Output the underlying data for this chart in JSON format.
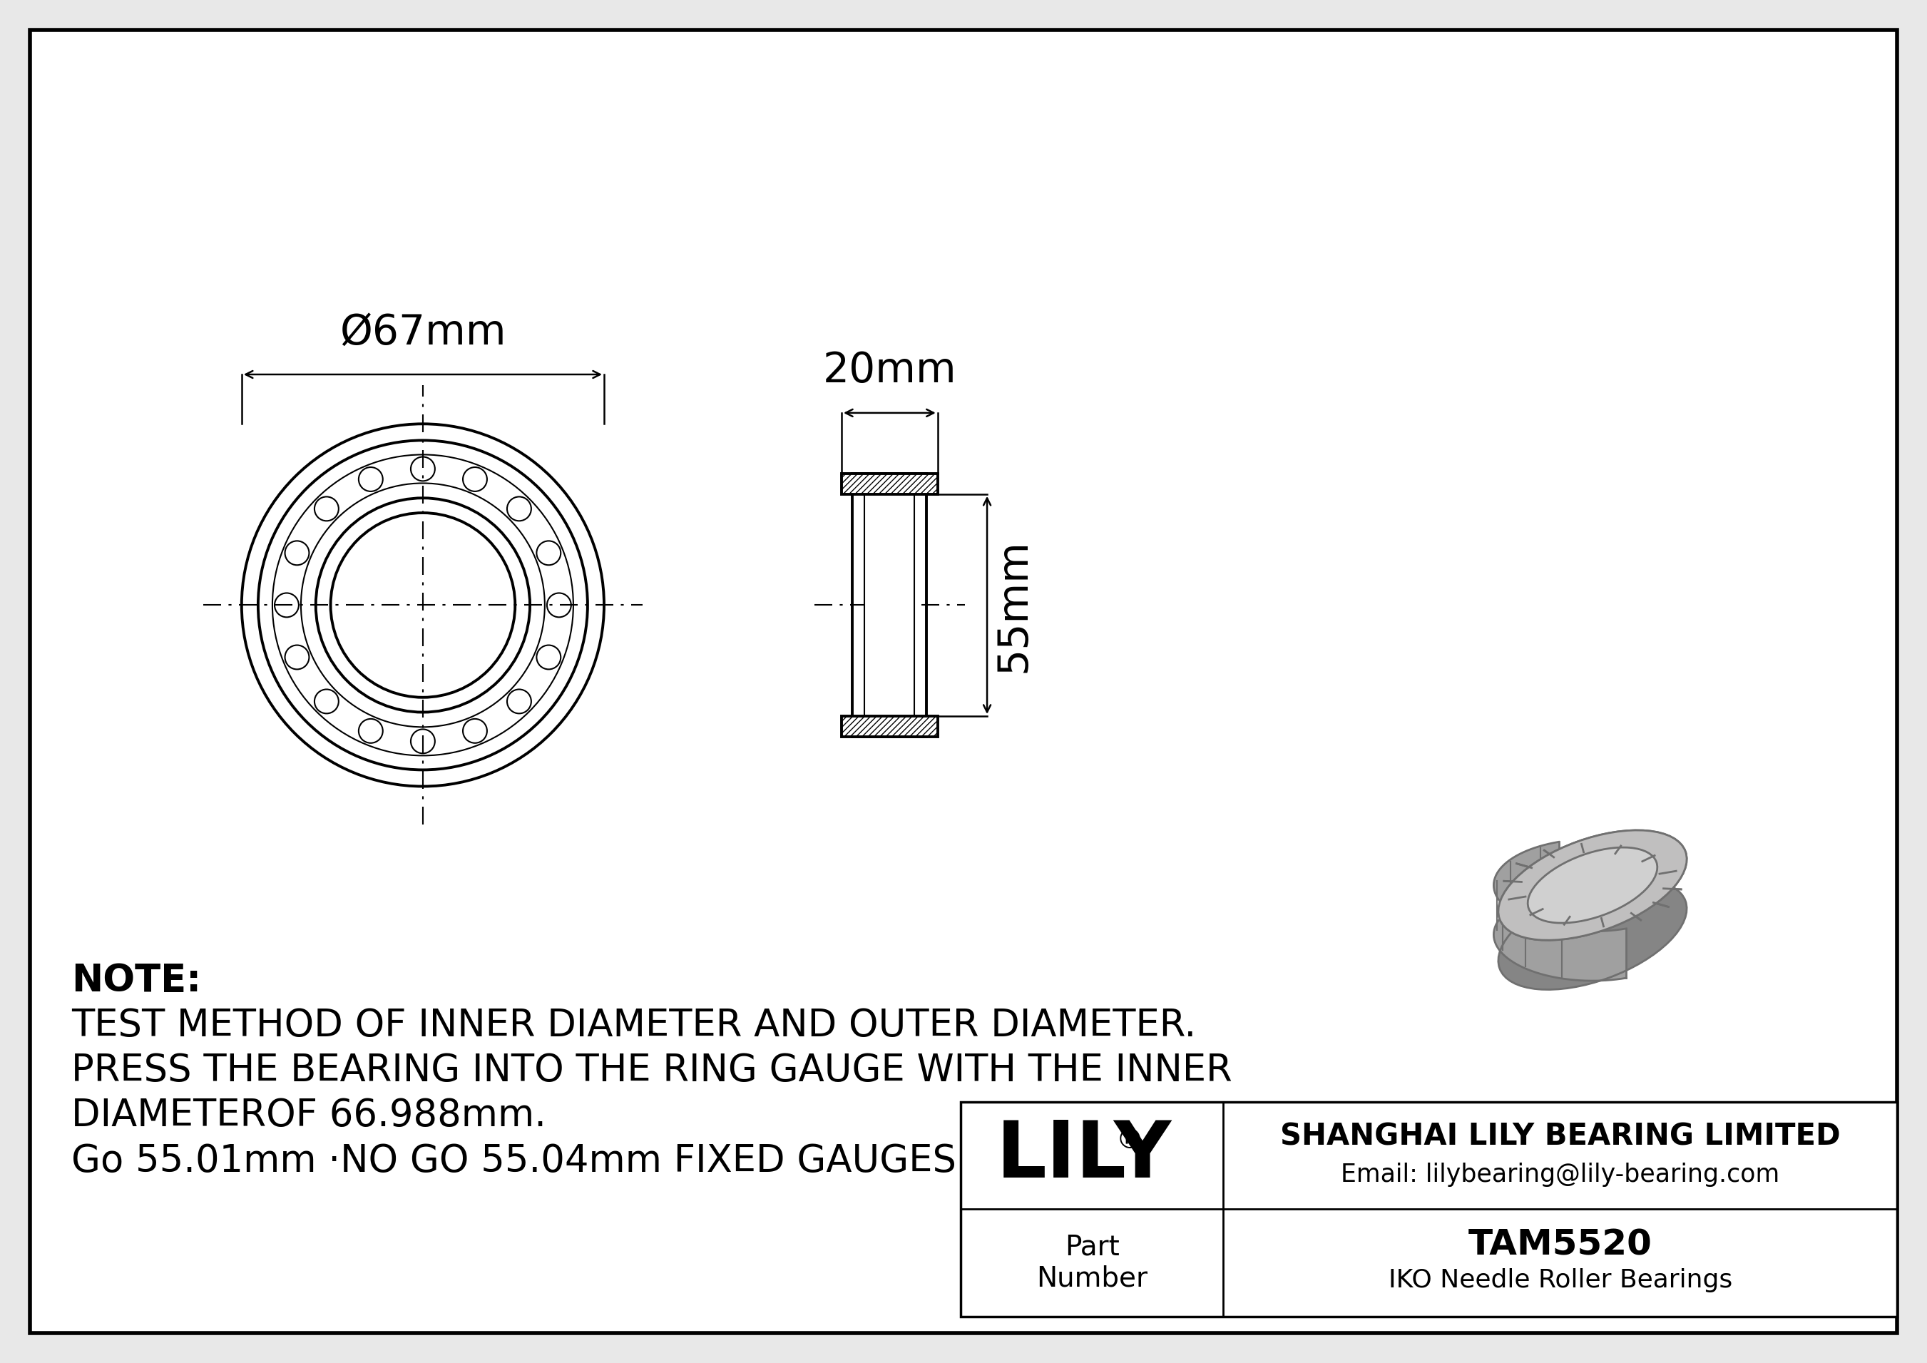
{
  "bg_color": "#e8e8e8",
  "drawing_bg": "#ffffff",
  "border_color": "#000000",
  "line_color": "#000000",
  "note_lines": [
    "NOTE:",
    "TEST METHOD OF INNER DIAMETER AND OUTER DIAMETER.",
    "PRESS THE BEARING INTO THE RING GAUGE WITH THE INNER",
    "DIAMETEROF 66.988mm.",
    "Go 55.01mm ·NO GO 55.04mm FIXED GAUGES"
  ],
  "title_box": {
    "company": "SHANGHAI LILY BEARING LIMITED",
    "email": "Email: lilybearing@lily-bearing.com",
    "part_label": "Part\nNumber",
    "part_number": "TAM5520",
    "part_type": "IKO Needle Roller Bearings",
    "lily_text": "LILY"
  },
  "dim_diameter": "Ø67mm",
  "dim_width": "20mm",
  "dim_height": "55mm"
}
